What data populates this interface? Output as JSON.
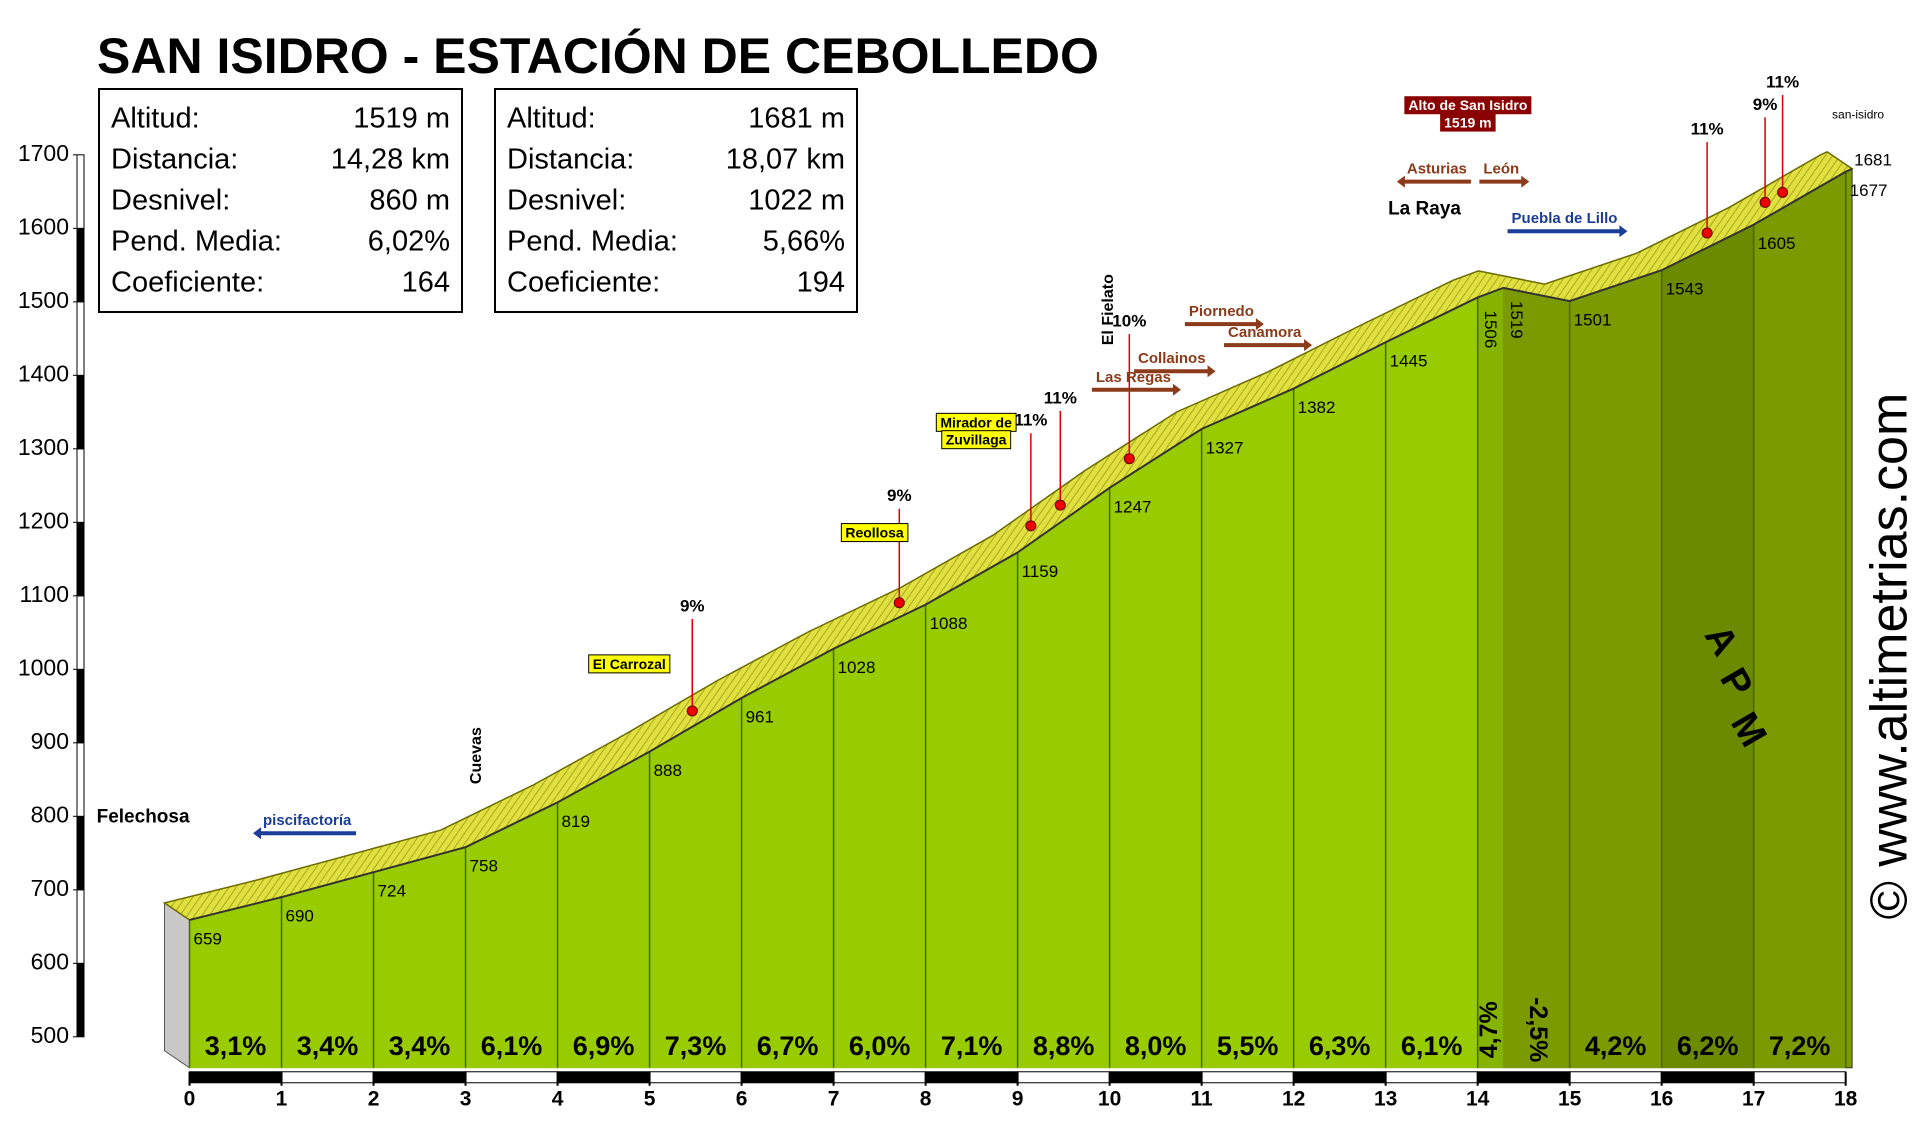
{
  "title": "SAN ISIDRO - ESTACIÓN DE CEBOLLEDO",
  "stats": [
    [
      [
        "Altitud:",
        "1519 m"
      ],
      [
        "Distancia:",
        "14,28 km"
      ],
      [
        "Desnivel:",
        "860 m"
      ],
      [
        "Pend. Media:",
        "6,02%"
      ],
      [
        "Coeficiente:",
        "164"
      ]
    ],
    [
      [
        "Altitud:",
        "1681 m"
      ],
      [
        "Distancia:",
        "18,07 km"
      ],
      [
        "Desnivel:",
        "1022 m"
      ],
      [
        "Pend. Media:",
        "5,66%"
      ],
      [
        "Coeficiente:",
        "194"
      ]
    ]
  ],
  "chart_data": {
    "type": "area",
    "x": [
      0,
      1,
      2,
      3,
      4,
      5,
      6,
      7,
      8,
      9,
      10,
      11,
      12,
      13,
      14,
      14.28,
      15,
      16,
      17,
      18,
      18.07
    ],
    "values": [
      659,
      690,
      724,
      758,
      819,
      888,
      961,
      1028,
      1088,
      1159,
      1247,
      1327,
      1382,
      1445,
      1506,
      1519,
      1501,
      1543,
      1605,
      1677,
      1681
    ],
    "xlim": [
      0,
      18
    ],
    "ylim": [
      500,
      1700
    ],
    "xticks": [
      0,
      1,
      2,
      3,
      4,
      5,
      6,
      7,
      8,
      9,
      10,
      11,
      12,
      13,
      14,
      15,
      16,
      17,
      18
    ],
    "yticks": [
      500,
      600,
      700,
      800,
      900,
      1000,
      1100,
      1200,
      1300,
      1400,
      1500,
      1600,
      1700
    ],
    "color": "#99cc00",
    "road_color": "#e0e040",
    "segments": {
      "values": [
        3.1,
        3.4,
        3.4,
        6.1,
        6.9,
        7.3,
        6.7,
        6.0,
        7.1,
        8.8,
        8.0,
        5.5,
        6.3,
        6.1,
        4.7,
        -2.5,
        4.2,
        6.2,
        7.2
      ],
      "value_labels": [
        "3,1%",
        "3,4%",
        "3,4%",
        "6,1%",
        "6,9%",
        "7,3%",
        "6,7%",
        "6,0%",
        "7,1%",
        "8,8%",
        "8,0%",
        "5,5%",
        "6,3%",
        "6,1%",
        "4,7%",
        "-2,5%",
        "4,2%",
        "6,2%",
        "7,2%"
      ],
      "colors": [
        "#99cc00",
        "#99cc00",
        "#99cc00",
        "#99cc00",
        "#99cc00",
        "#99cc00",
        "#99cc00",
        "#99cc00",
        "#99cc00",
        "#99cc00",
        "#99cc00",
        "#99cc00",
        "#99cc00",
        "#99cc00",
        "#86b300",
        "#7a9a00",
        "#7a9a00",
        "#6b8a00",
        "#7a9a00"
      ]
    },
    "grade_marks": [
      {
        "value": 9,
        "label": "9%"
      },
      {
        "value": 9,
        "label": "9%"
      },
      {
        "value": 11,
        "label": "11%"
      },
      {
        "value": 11,
        "label": "11%"
      },
      {
        "value": 10,
        "label": "10%"
      },
      {
        "value": 11,
        "label": "11%"
      },
      {
        "value": 9,
        "label": "9%"
      },
      {
        "value": 11,
        "label": "11%"
      }
    ],
    "annotations": [
      "Felechosa",
      "piscifactoría",
      "Cuevas",
      "El Carrozal",
      "Reollosa",
      "Mirador de",
      "Zuvillaga",
      "El Fielato",
      "Las Regas",
      "Collainos",
      "Piornedo",
      "Canamora",
      "La Raya",
      "Asturias",
      "León",
      "Puebla de Lillo",
      "Alto de San Isidro",
      "1519 m",
      "san-isidro"
    ]
  },
  "logo": [
    "A",
    "P",
    "M"
  ],
  "credit": "© www.altimetrias.com"
}
